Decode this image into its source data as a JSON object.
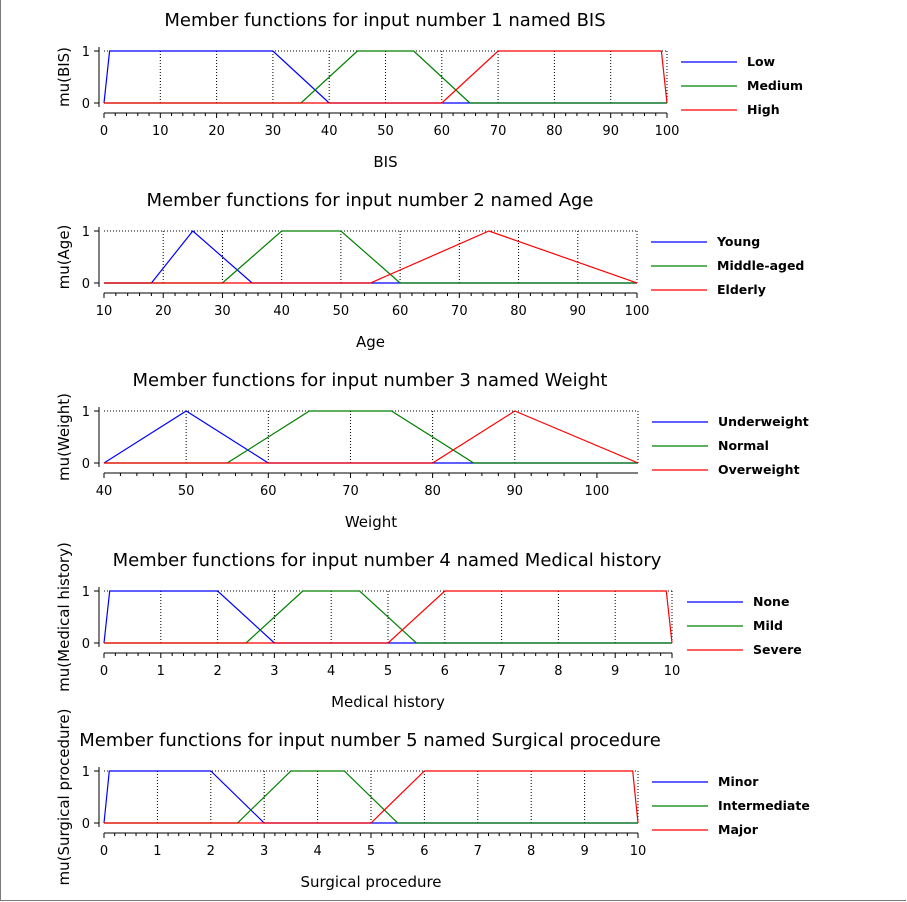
{
  "chart_data": [
    {
      "type": "line",
      "title": "Member functions for input number 1 named BIS",
      "xlabel": "BIS",
      "ylabel": "mu(BIS)",
      "xlim": [
        0,
        100
      ],
      "ylim": [
        0,
        1
      ],
      "xticks": [
        "0",
        "10",
        "20",
        "30",
        "40",
        "50",
        "60",
        "70",
        "80",
        "90",
        "100"
      ],
      "yticks": [
        "0",
        "1"
      ],
      "grid": true,
      "legend": "right",
      "series": [
        {
          "name": "Low",
          "color": "#0000ff",
          "x": [
            0,
            1,
            30,
            40,
            100
          ],
          "y": [
            0,
            1,
            1,
            0,
            0
          ]
        },
        {
          "name": "Medium",
          "color": "#008000",
          "x": [
            0,
            35,
            45,
            55,
            65,
            100
          ],
          "y": [
            0,
            0,
            1,
            1,
            0,
            0
          ]
        },
        {
          "name": "High",
          "color": "#ff0000",
          "x": [
            0,
            60,
            70,
            99,
            100
          ],
          "y": [
            0,
            0,
            1,
            1,
            0
          ]
        }
      ]
    },
    {
      "type": "line",
      "title": "Member functions for input number 2 named Age",
      "xlabel": "Age",
      "ylabel": "mu(Age)",
      "xlim": [
        10,
        100
      ],
      "ylim": [
        0,
        1
      ],
      "xticks": [
        "10",
        "20",
        "30",
        "40",
        "50",
        "60",
        "70",
        "80",
        "90",
        "100"
      ],
      "yticks": [
        "0",
        "1"
      ],
      "grid": true,
      "legend": "right",
      "series": [
        {
          "name": "Young",
          "color": "#0000ff",
          "x": [
            10,
            18,
            25,
            35,
            100
          ],
          "y": [
            0,
            0,
            1,
            0,
            0
          ]
        },
        {
          "name": "Middle-aged",
          "color": "#008000",
          "x": [
            10,
            30,
            40,
            50,
            60,
            100
          ],
          "y": [
            0,
            0,
            1,
            1,
            0,
            0
          ]
        },
        {
          "name": "Elderly",
          "color": "#ff0000",
          "x": [
            10,
            55,
            75,
            100
          ],
          "y": [
            0,
            0,
            1,
            0
          ]
        }
      ]
    },
    {
      "type": "line",
      "title": "Member functions for input number 3 named Weight",
      "xlabel": "Weight",
      "ylabel": "mu(Weight)",
      "xlim": [
        40,
        105
      ],
      "ylim": [
        0,
        1
      ],
      "xticks": [
        "40",
        "50",
        "60",
        "70",
        "80",
        "90",
        "100"
      ],
      "yticks": [
        "0",
        "1"
      ],
      "grid": true,
      "legend": "right",
      "series": [
        {
          "name": "Underweight",
          "color": "#0000ff",
          "x": [
            40,
            50,
            60,
            105
          ],
          "y": [
            0,
            1,
            0,
            0
          ]
        },
        {
          "name": "Normal",
          "color": "#008000",
          "x": [
            40,
            55,
            65,
            75,
            85,
            105
          ],
          "y": [
            0,
            0,
            1,
            1,
            0,
            0
          ]
        },
        {
          "name": "Overweight",
          "color": "#ff0000",
          "x": [
            40,
            80,
            90,
            105
          ],
          "y": [
            0,
            0,
            1,
            0
          ]
        }
      ]
    },
    {
      "type": "line",
      "title": "Member functions for input number 4 named Medical history",
      "xlabel": "Medical history",
      "ylabel": "mu(Medical history)",
      "xlim": [
        0,
        10
      ],
      "ylim": [
        0,
        1
      ],
      "xticks": [
        "0",
        "1",
        "2",
        "3",
        "4",
        "5",
        "6",
        "7",
        "8",
        "9",
        "10"
      ],
      "yticks": [
        "0",
        "1"
      ],
      "grid": true,
      "legend": "right",
      "series": [
        {
          "name": "None",
          "color": "#0000ff",
          "x": [
            0,
            0.1,
            2,
            3,
            10
          ],
          "y": [
            0,
            1,
            1,
            0,
            0
          ]
        },
        {
          "name": "Mild",
          "color": "#008000",
          "x": [
            0,
            2.5,
            3.5,
            4.5,
            5.5,
            10
          ],
          "y": [
            0,
            0,
            1,
            1,
            0,
            0
          ]
        },
        {
          "name": "Severe",
          "color": "#ff0000",
          "x": [
            0,
            5,
            6,
            9.9,
            10
          ],
          "y": [
            0,
            0,
            1,
            1,
            0
          ]
        }
      ]
    },
    {
      "type": "line",
      "title": "Member functions for input number 5 named Surgical procedure",
      "xlabel": "Surgical procedure",
      "ylabel": "mu(Surgical procedure)",
      "xlim": [
        0,
        10
      ],
      "ylim": [
        0,
        1
      ],
      "xticks": [
        "0",
        "1",
        "2",
        "3",
        "4",
        "5",
        "6",
        "7",
        "8",
        "9",
        "10"
      ],
      "yticks": [
        "0",
        "1"
      ],
      "grid": true,
      "legend": "right",
      "series": [
        {
          "name": "Minor",
          "color": "#0000ff",
          "x": [
            0,
            0.1,
            2,
            3,
            10
          ],
          "y": [
            0,
            1,
            1,
            0,
            0
          ]
        },
        {
          "name": "Intermediate",
          "color": "#008000",
          "x": [
            0,
            2.5,
            3.5,
            4.5,
            5.5,
            10
          ],
          "y": [
            0,
            0,
            1,
            1,
            0,
            0
          ]
        },
        {
          "name": "Major",
          "color": "#ff0000",
          "x": [
            0,
            5,
            6,
            9.9,
            10
          ],
          "y": [
            0,
            0,
            1,
            1,
            0
          ]
        }
      ]
    }
  ]
}
